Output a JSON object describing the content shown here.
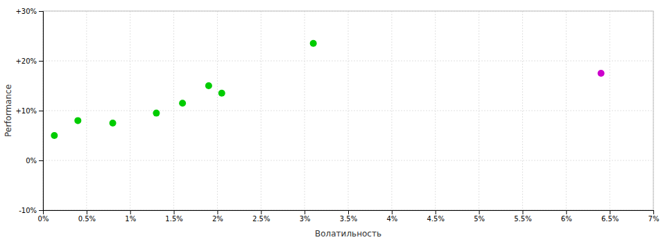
{
  "chart_data": {
    "type": "scatter",
    "xlabel": "Волатильность",
    "ylabel": "Performance",
    "xlim": [
      0.0,
      0.07
    ],
    "ylim": [
      -0.1,
      0.3
    ],
    "xticks": [
      {
        "value": 0.0,
        "label": "0%"
      },
      {
        "value": 0.005,
        "label": "0.5%"
      },
      {
        "value": 0.01,
        "label": "1%"
      },
      {
        "value": 0.015,
        "label": "1.5%"
      },
      {
        "value": 0.02,
        "label": "2%"
      },
      {
        "value": 0.025,
        "label": "2.5%"
      },
      {
        "value": 0.03,
        "label": "3%"
      },
      {
        "value": 0.035,
        "label": "3.5%"
      },
      {
        "value": 0.04,
        "label": "4%"
      },
      {
        "value": 0.045,
        "label": "4.5%"
      },
      {
        "value": 0.05,
        "label": "5%"
      },
      {
        "value": 0.055,
        "label": "5.5%"
      },
      {
        "value": 0.06,
        "label": "6%"
      },
      {
        "value": 0.065,
        "label": "6.5%"
      },
      {
        "value": 0.07,
        "label": "7%"
      }
    ],
    "yticks": [
      {
        "value": -0.1,
        "label": "-10%"
      },
      {
        "value": 0.0,
        "label": "0%"
      },
      {
        "value": 0.1,
        "label": "+10%"
      },
      {
        "value": 0.2,
        "label": "+20%"
      },
      {
        "value": 0.3,
        "label": "+30%"
      }
    ],
    "grid": true,
    "series": [
      {
        "color": "#00cc00",
        "x": [
          0.0013,
          0.004,
          0.008,
          0.013,
          0.016,
          0.019,
          0.0205,
          0.031
        ],
        "values": [
          0.05,
          0.08,
          0.075,
          0.095,
          0.115,
          0.15,
          0.135,
          0.235
        ]
      },
      {
        "color": "#cc00cc",
        "x": [
          0.064
        ],
        "values": [
          0.175
        ]
      }
    ]
  }
}
